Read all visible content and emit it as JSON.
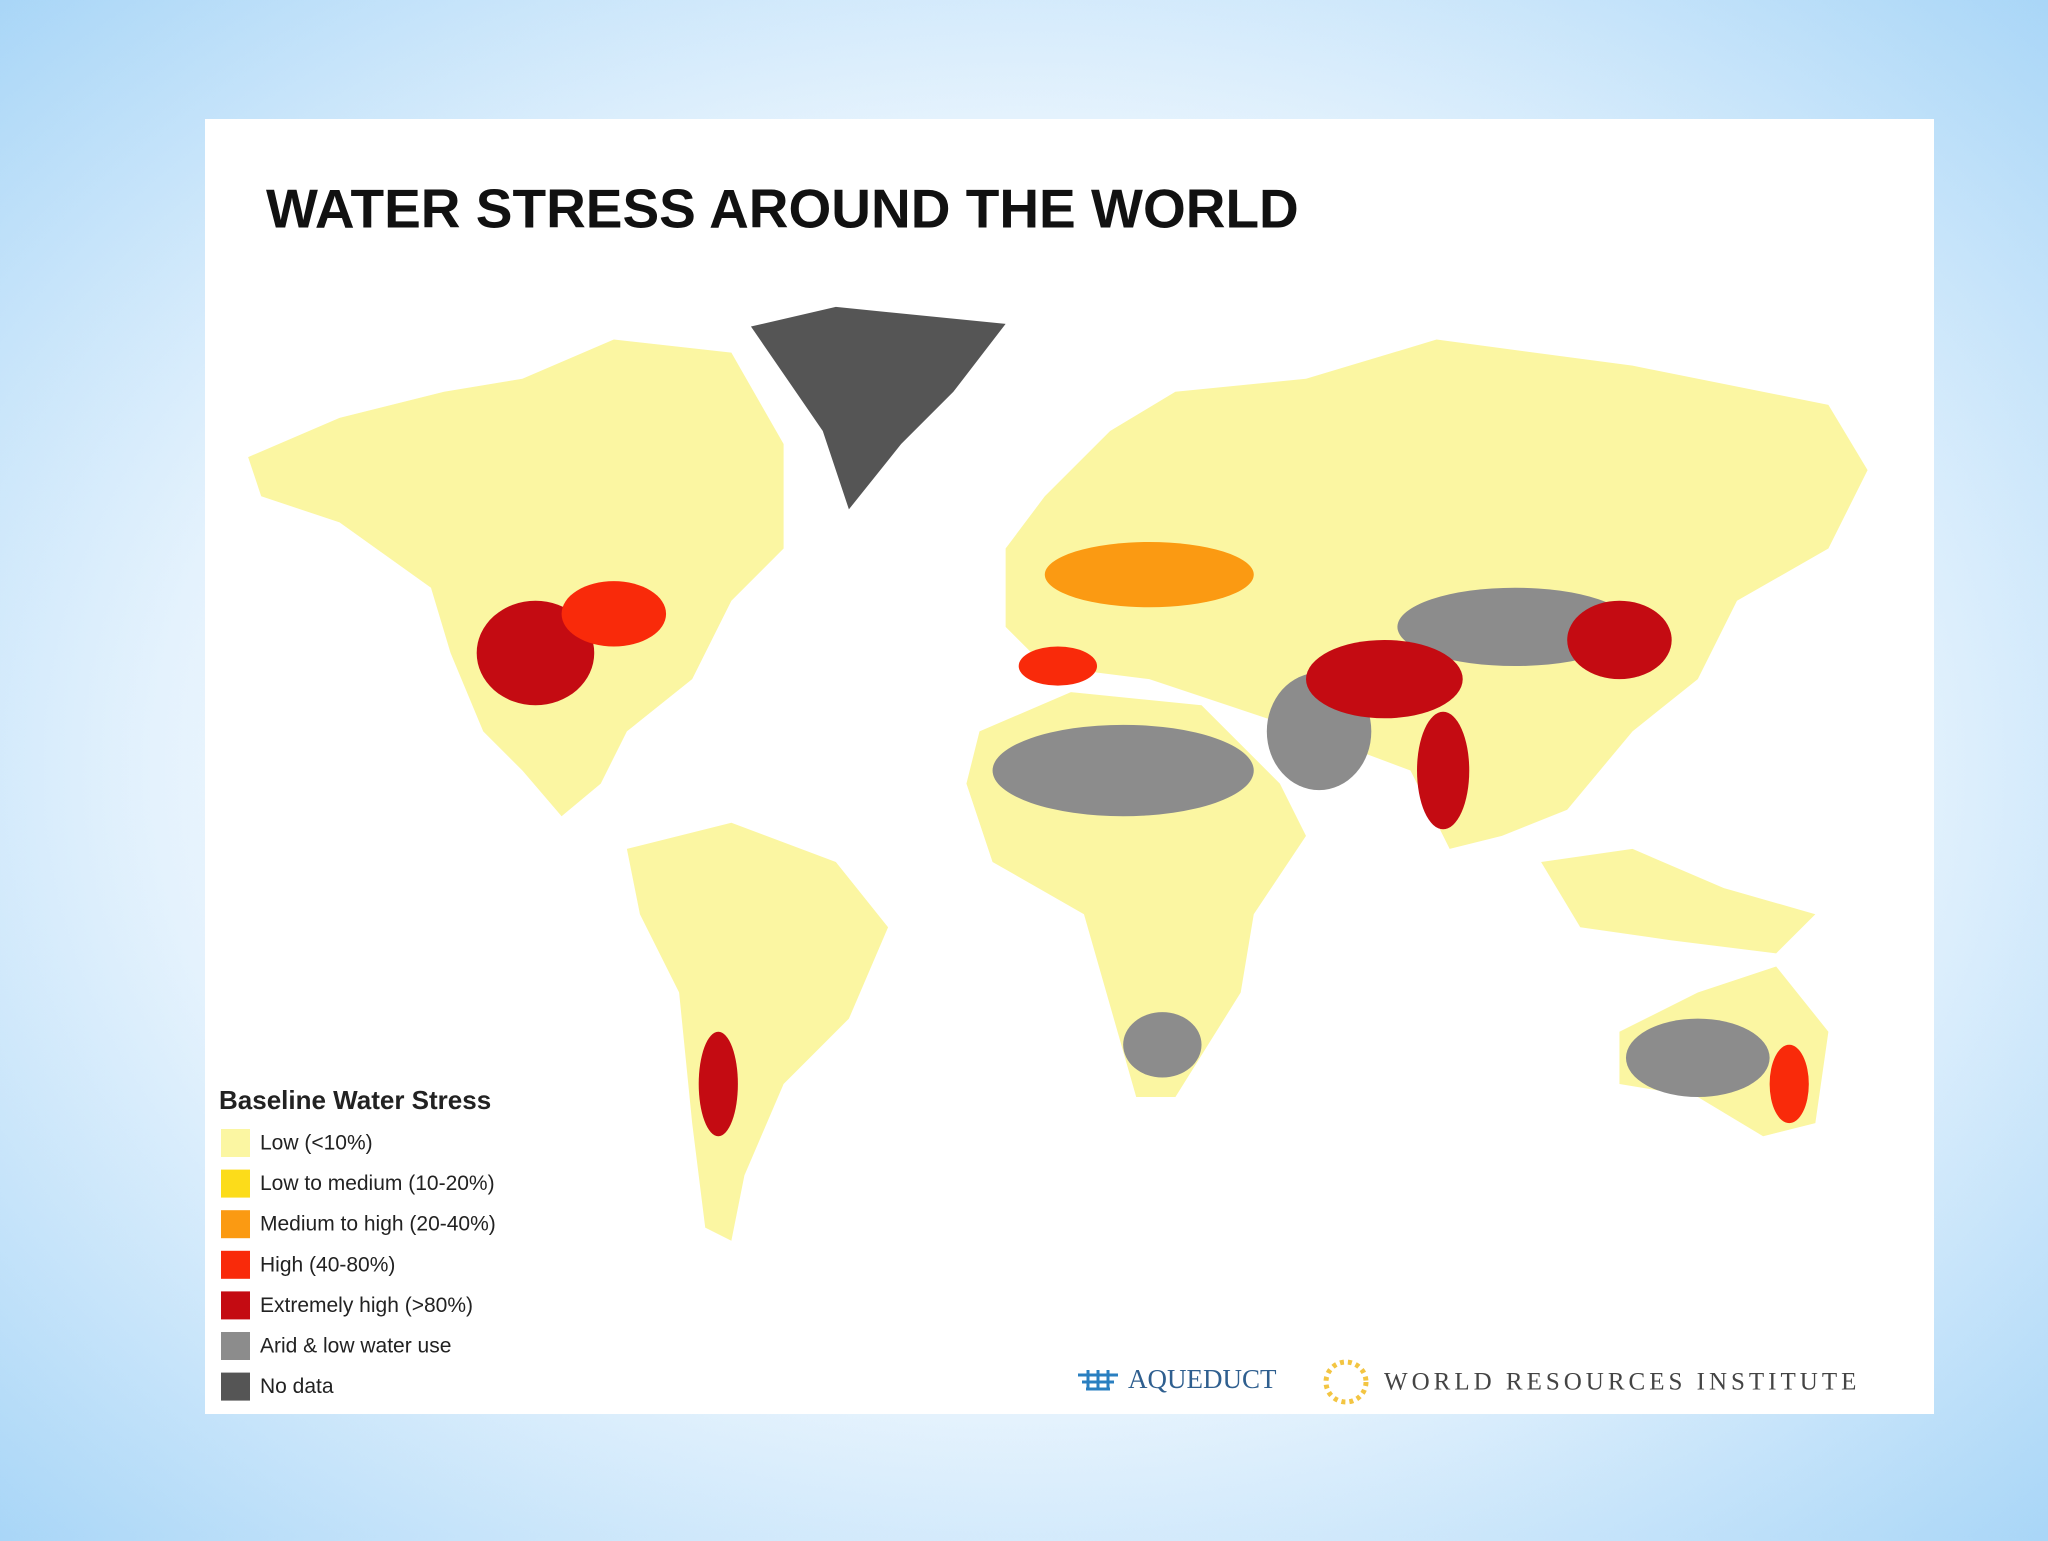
{
  "title": "WATER STRESS AROUND THE WORLD",
  "legend": {
    "title": "Baseline Water Stress",
    "items": [
      {
        "label": "Low (<10%)",
        "color": "#fbf6a2"
      },
      {
        "label": "Low to medium (10-20%)",
        "color": "#fcdc1a"
      },
      {
        "label": "Medium to high (20-40%)",
        "color": "#fb9a12"
      },
      {
        "label": "High (40-80%)",
        "color": "#f92a0a"
      },
      {
        "label": "Extremely high (>80%)",
        "color": "#c40b12"
      },
      {
        "label": "Arid & low water use",
        "color": "#8c8c8c"
      },
      {
        "label": "No data",
        "color": "#555555"
      }
    ]
  },
  "logos": {
    "aqueduct": "AQUEDUCT",
    "wri": "WORLD RESOURCES INSTITUTE"
  }
}
